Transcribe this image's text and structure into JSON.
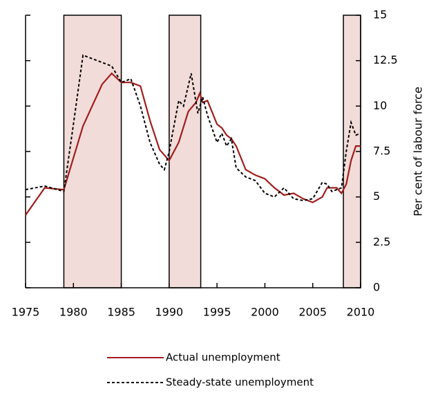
{
  "chart_data": {
    "type": "line",
    "y_axis_label": "Per cent of labour force",
    "xlim": [
      1975,
      2010
    ],
    "xticks": [
      1975,
      1980,
      1985,
      1990,
      1995,
      2000,
      2005,
      2010
    ],
    "ylim": [
      0,
      15
    ],
    "yticks": [
      0,
      2.5,
      5,
      7.5,
      10,
      12.5,
      15
    ],
    "shaded_periods": [
      {
        "start": 1979,
        "end": 1985
      },
      {
        "start": 1990,
        "end": 1993.3
      },
      {
        "start": 2008.2,
        "end": 2010
      }
    ],
    "shade_color": "#f2dcd9",
    "series": [
      {
        "name": "Actual unemployment",
        "color": "#a01c1c",
        "dashed": false,
        "x": [
          1975,
          1977,
          1979,
          1981,
          1983,
          1984,
          1985,
          1986,
          1987,
          1988,
          1989,
          1990,
          1991,
          1992,
          1992.8,
          1993.2,
          1993.5,
          1994,
          1995,
          1995.5,
          1996,
          1996.5,
          1997,
          1998,
          1999,
          2000,
          2001,
          2002,
          2003,
          2004,
          2005,
          2006,
          2006.5,
          2007.5,
          2008,
          2008.5,
          2009,
          2009.5,
          2010
        ],
        "values": [
          4.0,
          5.5,
          5.4,
          8.9,
          11.2,
          11.8,
          11.3,
          11.3,
          11.1,
          9.2,
          7.6,
          7.0,
          8.0,
          9.7,
          10.2,
          10.7,
          10.2,
          10.3,
          9.0,
          8.8,
          8.4,
          8.2,
          7.8,
          6.5,
          6.2,
          6.0,
          5.5,
          5.1,
          5.2,
          4.9,
          4.7,
          5.0,
          5.5,
          5.5,
          5.2,
          5.7,
          7.0,
          7.8,
          7.8
        ]
      },
      {
        "name": "Steady-state unemployment",
        "color": "#000000",
        "dashed": true,
        "x": [
          1975,
          1977,
          1979,
          1980,
          1981,
          1984,
          1985,
          1986,
          1987,
          1988,
          1989,
          1989.5,
          1990,
          1991,
          1991.5,
          1992.3,
          1993,
          1993.5,
          1994,
          1995,
          1995.5,
          1996,
          1996.5,
          1997,
          1998,
          1999,
          2000,
          2001,
          2002,
          2003,
          2004,
          2005,
          2006,
          2006.5,
          2007,
          2008,
          2008.5,
          2009,
          2009.5,
          2010
        ],
        "values": [
          5.4,
          5.6,
          5.3,
          9.0,
          12.8,
          12.2,
          11.3,
          11.5,
          10.0,
          8.0,
          6.8,
          6.5,
          7.5,
          10.3,
          10.0,
          11.8,
          9.6,
          10.5,
          9.5,
          8.0,
          8.5,
          7.8,
          8.2,
          6.6,
          6.1,
          5.9,
          5.2,
          5.0,
          5.5,
          4.9,
          4.8,
          4.9,
          5.8,
          5.7,
          5.3,
          5.5,
          7.5,
          9.1,
          8.4,
          8.5
        ]
      }
    ]
  }
}
